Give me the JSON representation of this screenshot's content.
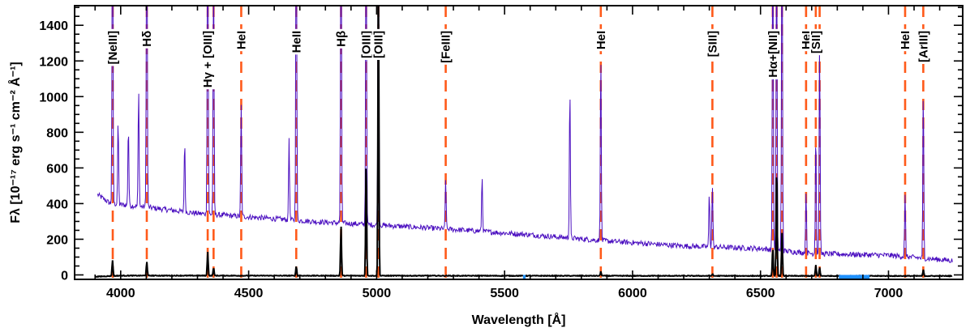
{
  "chart_data": {
    "type": "line",
    "xlabel": "Wavelength [Å]",
    "ylabel": "Fλ [10⁻¹⁷ erg s⁻¹ cm⁻² Å⁻¹]",
    "xlim": [
      3820,
      7290
    ],
    "ylim": [
      -25,
      1510
    ],
    "x_ticks": [
      4000,
      4500,
      5000,
      5500,
      6000,
      6500,
      7000
    ],
    "y_ticks": [
      0,
      200,
      400,
      600,
      800,
      1000,
      1200,
      1400
    ],
    "x_minor_step": 100,
    "y_minor_step": 50,
    "grid": false,
    "colors": {
      "upper_spectrum": "#4b0fc0",
      "lower_spectrum": "#000000",
      "line_markers": "#ff5a1a",
      "sky_mask": "#1e90ff"
    },
    "continuum_upper": [
      [
        3910,
        450
      ],
      [
        3960,
        400
      ],
      [
        4100,
        380
      ],
      [
        4300,
        345
      ],
      [
        4500,
        325
      ],
      [
        4800,
        295
      ],
      [
        5000,
        280
      ],
      [
        5300,
        255
      ],
      [
        5600,
        225
      ],
      [
        5900,
        190
      ],
      [
        6200,
        162
      ],
      [
        6500,
        148
      ],
      [
        6700,
        120
      ],
      [
        7000,
        110
      ],
      [
        7250,
        80
      ]
    ],
    "continuum_lower": [
      [
        3900,
        -10
      ],
      [
        4000,
        -4
      ],
      [
        7250,
        -6
      ]
    ],
    "series": [
      {
        "id": "upper",
        "lines": [
          {
            "x": 3968,
            "h": 2000
          },
          {
            "x": 4102,
            "h": 2000
          },
          {
            "x": 4340,
            "h": 2000
          },
          {
            "x": 4363,
            "h": 1450
          },
          {
            "x": 4471,
            "h": 620
          },
          {
            "x": 4686,
            "h": 2000
          },
          {
            "x": 4861,
            "h": 2000
          },
          {
            "x": 4959,
            "h": 2000
          },
          {
            "x": 5007,
            "h": 2000
          },
          {
            "x": 5876,
            "h": 1070
          },
          {
            "x": 6312,
            "h": 345
          },
          {
            "x": 6548,
            "h": 2000
          },
          {
            "x": 6563,
            "h": 2000
          },
          {
            "x": 6584,
            "h": 2000
          },
          {
            "x": 6678,
            "h": 355
          },
          {
            "x": 6716,
            "h": 700
          },
          {
            "x": 6731,
            "h": 1200
          },
          {
            "x": 7065,
            "h": 340
          },
          {
            "x": 7136,
            "h": 960
          },
          {
            "x": 4070,
            "h": 660
          },
          {
            "x": 3990,
            "h": 470
          },
          {
            "x": 4030,
            "h": 450
          },
          {
            "x": 5755,
            "h": 430
          },
          {
            "x": 4658,
            "h": 460
          },
          {
            "x": 5412,
            "h": 310
          },
          {
            "x": 5270,
            "h": 280
          },
          {
            "x": 6300,
            "h": 300
          },
          {
            "x": 4250,
            "h": 400
          },
          {
            "x": 5755,
            "h": 430
          }
        ]
      },
      {
        "id": "lower",
        "lines": [
          {
            "x": 3968,
            "h": 90
          },
          {
            "x": 4102,
            "h": 80
          },
          {
            "x": 4340,
            "h": 135
          },
          {
            "x": 4363,
            "h": 45
          },
          {
            "x": 4686,
            "h": 55
          },
          {
            "x": 4861,
            "h": 280
          },
          {
            "x": 4959,
            "h": 660
          },
          {
            "x": 5007,
            "h": 1800
          },
          {
            "x": 5876,
            "h": 25
          },
          {
            "x": 6312,
            "h": 10
          },
          {
            "x": 6548,
            "h": 160
          },
          {
            "x": 6563,
            "h": 640
          },
          {
            "x": 6584,
            "h": 240
          },
          {
            "x": 6716,
            "h": 60
          },
          {
            "x": 6731,
            "h": 50
          },
          {
            "x": 7136,
            "h": 35
          }
        ]
      }
    ],
    "sky_mask_segments": [
      [
        5572,
        5582
      ],
      [
        6806,
        6926
      ]
    ],
    "line_markers": [
      {
        "x": 3969,
        "label": "[NeIII]"
      },
      {
        "x": 4102,
        "label": "Hδ"
      },
      {
        "x": 4340,
        "label": "Hγ + [OIII]"
      },
      {
        "x": 4363,
        "label": ""
      },
      {
        "x": 4471,
        "label": "HeI"
      },
      {
        "x": 4686,
        "label": "HeII"
      },
      {
        "x": 4861,
        "label": "Hβ"
      },
      {
        "x": 4959,
        "label": "[OIII]"
      },
      {
        "x": 5007,
        "label": "[OIII]"
      },
      {
        "x": 5270,
        "label": "[FeIII]"
      },
      {
        "x": 5876,
        "label": "HeI"
      },
      {
        "x": 6312,
        "label": "[SIII]"
      },
      {
        "x": 6548,
        "label": "Hα+[NII]"
      },
      {
        "x": 6563,
        "label": ""
      },
      {
        "x": 6584,
        "label": ""
      },
      {
        "x": 6678,
        "label": "HeI"
      },
      {
        "x": 6716,
        "label": "[SII]"
      },
      {
        "x": 6731,
        "label": ""
      },
      {
        "x": 7065,
        "label": "HeI"
      },
      {
        "x": 7136,
        "label": "[ArIII]"
      }
    ]
  }
}
